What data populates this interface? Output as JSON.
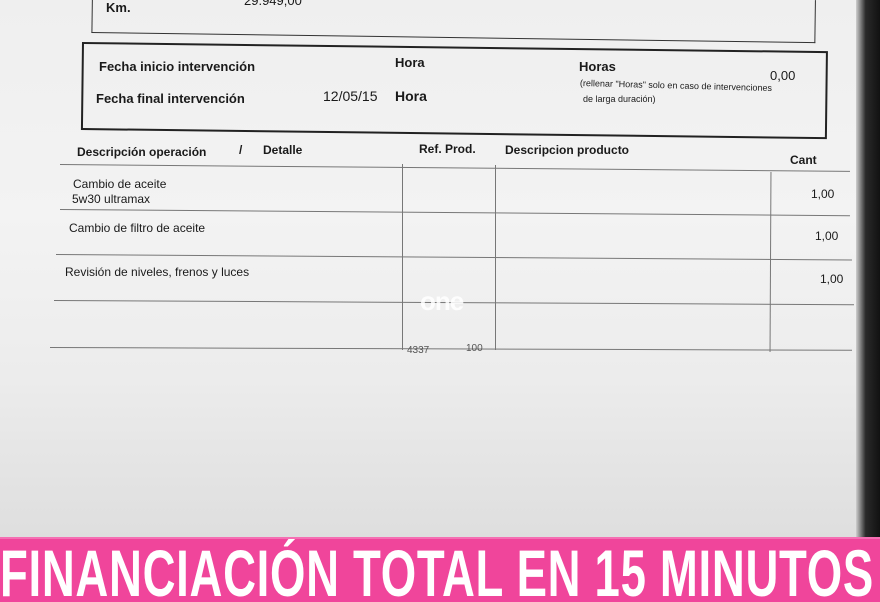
{
  "vehicle": {
    "km_label": "Km.",
    "km_value": "29.949,00"
  },
  "intervention": {
    "start_label": "Fecha inicio intervención",
    "start_hour_label": "Hora",
    "end_label": "Fecha final intervención",
    "end_date": "12/05/15",
    "end_hour_label": "Hora",
    "hours_label": "Horas",
    "hours_value": "0,00",
    "hours_note_line1": "(rellenar \"Horas\" solo en caso de intervenciones",
    "hours_note_line2": "de larga duración)"
  },
  "table": {
    "headers": {
      "operation": "Descripción operación",
      "separator": "/",
      "detail": "Detalle",
      "ref": "Ref. Prod.",
      "product": "Descripcion producto",
      "qty": "Cant"
    },
    "rows": [
      {
        "operation": "Cambio de aceite",
        "detail": "5w30 ultramax",
        "qty": "1,00"
      },
      {
        "operation": "Cambio de filtro de aceite",
        "detail": "",
        "qty": "1,00"
      },
      {
        "operation": "Revisión de niveles, frenos y luces",
        "detail": "",
        "qty": "1,00"
      }
    ],
    "footer_codes": [
      "4337",
      "100"
    ]
  },
  "watermark": "one",
  "banner": {
    "text": "FINANCIACIÓN TOTAL EN 15 MINUTOS",
    "color": "#f0459b"
  }
}
